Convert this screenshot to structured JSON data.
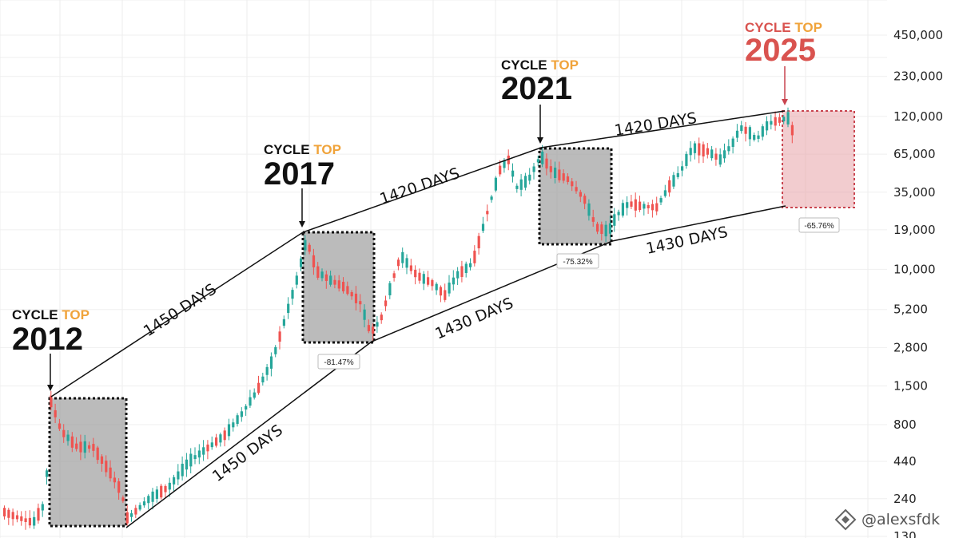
{
  "chart_data": {
    "type": "candlestick",
    "scale": "log",
    "grid": true,
    "y_ticks": [
      "450,000",
      "230,000",
      "120,000",
      "65,000",
      "35,000",
      "19,000",
      "10,000",
      "5,200",
      "2,800",
      "1,500",
      "800",
      "440",
      "240",
      "130"
    ],
    "y_tick_values": [
      450000,
      230000,
      120000,
      65000,
      35000,
      19000,
      10000,
      5200,
      2800,
      1500,
      800,
      440,
      240,
      130
    ],
    "colors": {
      "up": "#26a69a",
      "down": "#ef5350",
      "box": "#9e9e9e",
      "projection": "#e8a3a8",
      "accent": "#f0a33a",
      "red_text": "#d9534f"
    },
    "cycle_tops": [
      {
        "prefix": "CYCLE",
        "word": "TOP",
        "year": "2012",
        "color": "#111111"
      },
      {
        "prefix": "CYCLE",
        "word": "TOP",
        "year": "2017",
        "color": "#111111"
      },
      {
        "prefix": "CYCLE",
        "word": "TOP",
        "year": "2021",
        "color": "#111111"
      },
      {
        "prefix": "CYCLE",
        "word": "TOP",
        "year": "2025",
        "color": "#d9534f"
      }
    ],
    "upper_trend_labels": [
      "1450 DAYS",
      "1420 DAYS",
      "1420 DAYS"
    ],
    "lower_trend_labels": [
      "1450 DAYS",
      "1430 DAYS",
      "1430 DAYS"
    ],
    "drawdowns": [
      "-81.47%",
      "-75.32%",
      "-65.76%"
    ],
    "watermark": "@alexsfdk"
  }
}
